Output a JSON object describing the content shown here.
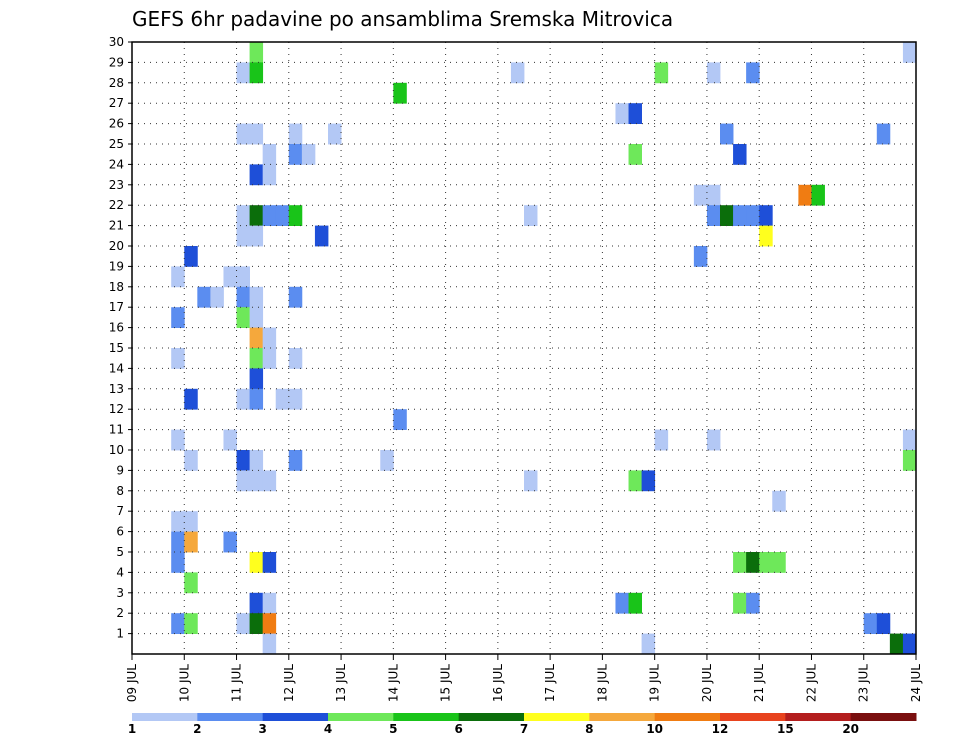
{
  "chart_data": {
    "type": "heatmap",
    "title": "GEFS 6hr padavine po ansamblima Sremska Mitrovica",
    "x_ticks": [
      "09 JUL",
      "10 JUL",
      "11 JUL",
      "12 JUL",
      "13 JUL",
      "14 JUL",
      "15 JUL",
      "16 JUL",
      "17 JUL",
      "18 JUL",
      "19 JUL",
      "20 JUL",
      "21 JUL",
      "22 JUL",
      "23 JUL",
      "24 JUL"
    ],
    "y_ticks": [
      "1",
      "2",
      "3",
      "4",
      "5",
      "6",
      "7",
      "8",
      "9",
      "10",
      "11",
      "12",
      "13",
      "14",
      "15",
      "16",
      "17",
      "18",
      "19",
      "20",
      "21",
      "22",
      "23",
      "24",
      "25",
      "26",
      "27",
      "28",
      "29",
      "30"
    ],
    "x_range": [
      "09 JUL 00",
      "24 JUL 00"
    ],
    "y_range": [
      0,
      30
    ],
    "grid": true,
    "steps_per_day": 4,
    "legend": {
      "placement": "bottom",
      "labels": [
        "1",
        "2",
        "3",
        "4",
        "5",
        "6",
        "7",
        "8",
        "10",
        "12",
        "15",
        "20"
      ],
      "colors": [
        "#b3c8f5",
        "#5b8df0",
        "#1e4fd8",
        "#6ee85a",
        "#19c419",
        "#0b6e0b",
        "#ffff1e",
        "#f5a83c",
        "#f07c12",
        "#e8431e",
        "#b41e1e",
        "#7a0f0f"
      ]
    },
    "cells": [
      [
        9,
        30,
        "#6ee85a"
      ],
      [
        59,
        30,
        "#b3c8f5"
      ],
      [
        8,
        29,
        "#b3c8f5"
      ],
      [
        9,
        29,
        "#19c419"
      ],
      [
        40,
        29,
        "#6ee85a"
      ],
      [
        44,
        29,
        "#b3c8f5"
      ],
      [
        47,
        29,
        "#5b8df0"
      ],
      [
        29,
        29,
        "#b3c8f5"
      ],
      [
        20,
        28,
        "#19c419"
      ],
      [
        37,
        27,
        "#b3c8f5"
      ],
      [
        38,
        27,
        "#1e4fd8"
      ],
      [
        8,
        26,
        "#b3c8f5"
      ],
      [
        9,
        26,
        "#b3c8f5"
      ],
      [
        12,
        26,
        "#b3c8f5"
      ],
      [
        15,
        26,
        "#b3c8f5"
      ],
      [
        45,
        26,
        "#5b8df0"
      ],
      [
        57,
        26,
        "#5b8df0"
      ],
      [
        10,
        25,
        "#b3c8f5"
      ],
      [
        12,
        25,
        "#5b8df0"
      ],
      [
        13,
        25,
        "#b3c8f5"
      ],
      [
        38,
        25,
        "#6ee85a"
      ],
      [
        46,
        25,
        "#1e4fd8"
      ],
      [
        9,
        24,
        "#1e4fd8"
      ],
      [
        10,
        24,
        "#b3c8f5"
      ],
      [
        43,
        23,
        "#b3c8f5"
      ],
      [
        44,
        23,
        "#b3c8f5"
      ],
      [
        51,
        23,
        "#f07c12"
      ],
      [
        52,
        23,
        "#19c419"
      ],
      [
        8,
        22,
        "#b3c8f5"
      ],
      [
        9,
        22,
        "#0b6e0b"
      ],
      [
        10,
        22,
        "#5b8df0"
      ],
      [
        11,
        22,
        "#5b8df0"
      ],
      [
        12,
        22,
        "#19c419"
      ],
      [
        30,
        22,
        "#b3c8f5"
      ],
      [
        44,
        22,
        "#5b8df0"
      ],
      [
        45,
        22,
        "#0b6e0b"
      ],
      [
        46,
        22,
        "#5b8df0"
      ],
      [
        47,
        22,
        "#5b8df0"
      ],
      [
        48,
        22,
        "#1e4fd8"
      ],
      [
        8,
        21,
        "#b3c8f5"
      ],
      [
        9,
        21,
        "#b3c8f5"
      ],
      [
        14,
        21,
        "#1e4fd8"
      ],
      [
        48,
        21,
        "#ffff1e"
      ],
      [
        4,
        20,
        "#1e4fd8"
      ],
      [
        43,
        20,
        "#5b8df0"
      ],
      [
        3,
        19,
        "#b3c8f5"
      ],
      [
        7,
        19,
        "#b3c8f5"
      ],
      [
        8,
        19,
        "#b3c8f5"
      ],
      [
        5,
        18,
        "#5b8df0"
      ],
      [
        6,
        18,
        "#b3c8f5"
      ],
      [
        8,
        18,
        "#5b8df0"
      ],
      [
        9,
        18,
        "#b3c8f5"
      ],
      [
        12,
        18,
        "#5b8df0"
      ],
      [
        3,
        17,
        "#5b8df0"
      ],
      [
        8,
        17,
        "#6ee85a"
      ],
      [
        9,
        17,
        "#b3c8f5"
      ],
      [
        9,
        16,
        "#f5a83c"
      ],
      [
        10,
        16,
        "#b3c8f5"
      ],
      [
        3,
        15,
        "#b3c8f5"
      ],
      [
        9,
        15,
        "#6ee85a"
      ],
      [
        10,
        15,
        "#b3c8f5"
      ],
      [
        12,
        15,
        "#b3c8f5"
      ],
      [
        9,
        14,
        "#1e4fd8"
      ],
      [
        8,
        13,
        "#b3c8f5"
      ],
      [
        12,
        13,
        "#b3c8f5"
      ],
      [
        4,
        13,
        "#1e4fd8"
      ],
      [
        9,
        13,
        "#5b8df0"
      ],
      [
        11,
        13,
        "#b3c8f5"
      ],
      [
        20,
        12,
        "#5b8df0"
      ],
      [
        3,
        11,
        "#b3c8f5"
      ],
      [
        7,
        11,
        "#b3c8f5"
      ],
      [
        40,
        11,
        "#b3c8f5"
      ],
      [
        44,
        11,
        "#b3c8f5"
      ],
      [
        59,
        11,
        "#b3c8f5"
      ],
      [
        8,
        10,
        "#1e4fd8"
      ],
      [
        12,
        10,
        "#5b8df0"
      ],
      [
        4,
        10,
        "#b3c8f5"
      ],
      [
        9,
        10,
        "#b3c8f5"
      ],
      [
        19,
        10,
        "#b3c8f5"
      ],
      [
        59,
        10,
        "#6ee85a"
      ],
      [
        8,
        9,
        "#b3c8f5"
      ],
      [
        9,
        9,
        "#b3c8f5"
      ],
      [
        10,
        9,
        "#b3c8f5"
      ],
      [
        30,
        9,
        "#b3c8f5"
      ],
      [
        38,
        9,
        "#6ee85a"
      ],
      [
        39,
        9,
        "#1e4fd8"
      ],
      [
        49,
        8,
        "#b3c8f5"
      ],
      [
        3,
        7,
        "#b3c8f5"
      ],
      [
        4,
        7,
        "#b3c8f5"
      ],
      [
        7,
        6,
        "#5b8df0"
      ],
      [
        3,
        6,
        "#5b8df0"
      ],
      [
        4,
        6,
        "#f5a83c"
      ],
      [
        3,
        5,
        "#5b8df0"
      ],
      [
        9,
        5,
        "#ffff1e"
      ],
      [
        10,
        5,
        "#1e4fd8"
      ],
      [
        46,
        5,
        "#6ee85a"
      ],
      [
        47,
        5,
        "#0b6e0b"
      ],
      [
        48,
        5,
        "#6ee85a"
      ],
      [
        49,
        5,
        "#6ee85a"
      ],
      [
        4,
        4,
        "#6ee85a"
      ],
      [
        9,
        3,
        "#1e4fd8"
      ],
      [
        10,
        3,
        "#b3c8f5"
      ],
      [
        37,
        3,
        "#5b8df0"
      ],
      [
        38,
        3,
        "#19c419"
      ],
      [
        46,
        3,
        "#6ee85a"
      ],
      [
        47,
        3,
        "#5b8df0"
      ],
      [
        3,
        2,
        "#5b8df0"
      ],
      [
        4,
        2,
        "#6ee85a"
      ],
      [
        8,
        2,
        "#b3c8f5"
      ],
      [
        9,
        2,
        "#0b6e0b"
      ],
      [
        10,
        2,
        "#f07c12"
      ],
      [
        56,
        2,
        "#5b8df0"
      ],
      [
        57,
        2,
        "#1e4fd8"
      ],
      [
        10,
        1,
        "#b3c8f5"
      ],
      [
        39,
        1,
        "#b3c8f5"
      ],
      [
        58,
        1,
        "#0b6e0b"
      ],
      [
        59,
        1,
        "#1e4fd8"
      ]
    ]
  }
}
